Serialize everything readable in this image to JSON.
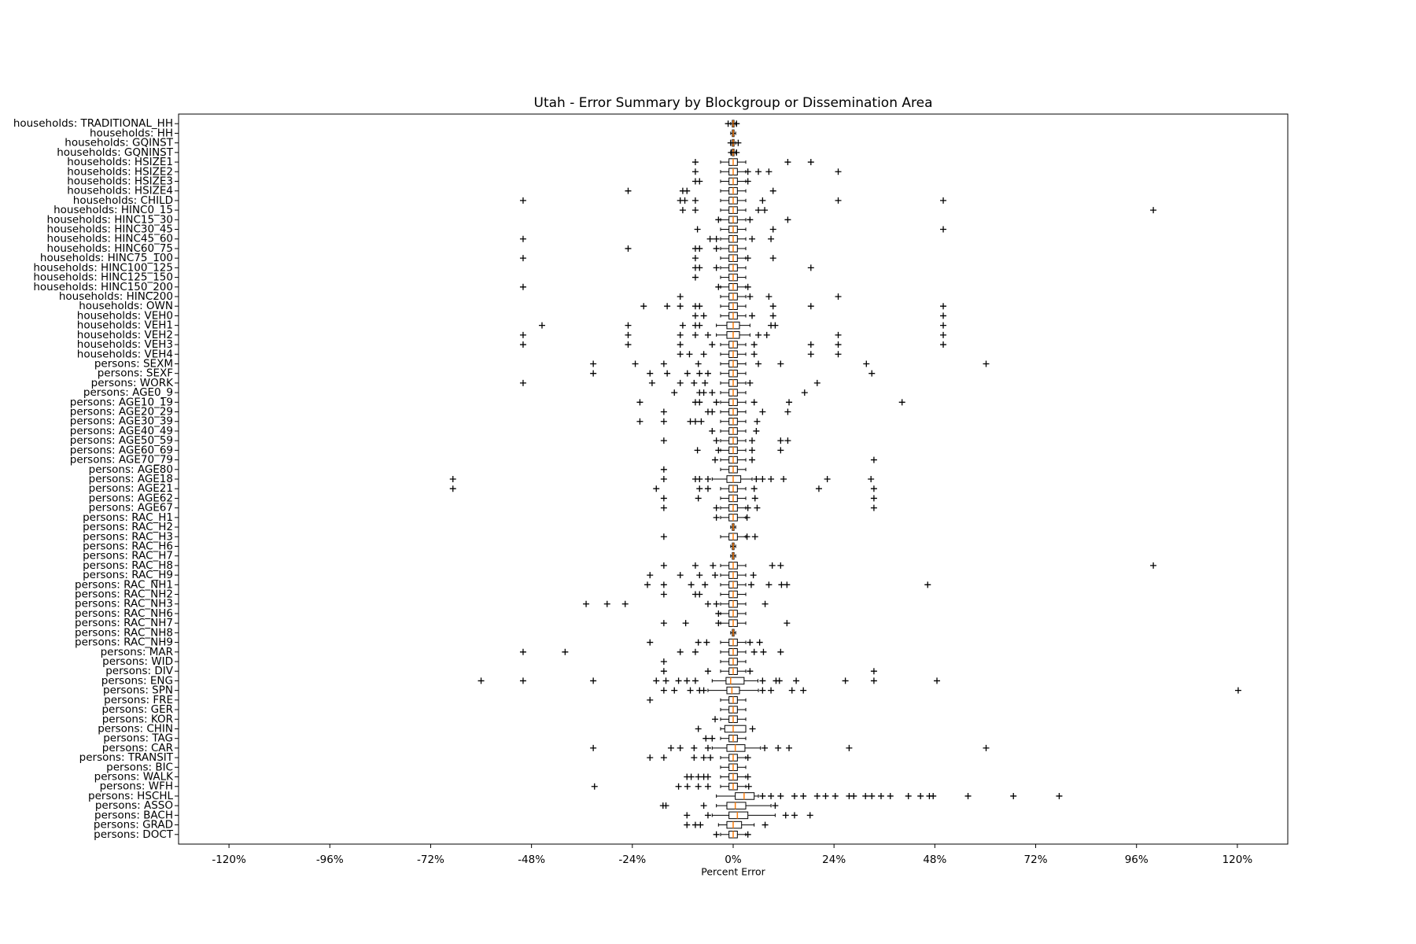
{
  "chart_data": {
    "type": "boxplot",
    "orientation": "horizontal",
    "title": "Utah - Error Summary by Blockgroup or Dissemination Area",
    "x_label": "Percent Error",
    "xlim": [
      -132,
      132
    ],
    "xticks": [
      {
        "value": -120,
        "label": "-120%"
      },
      {
        "value": -96,
        "label": "-96%"
      },
      {
        "value": -72,
        "label": "-72%"
      },
      {
        "value": -48,
        "label": "-48%"
      },
      {
        "value": -24,
        "label": "-24%"
      },
      {
        "value": 0,
        "label": "0%"
      },
      {
        "value": 24,
        "label": "24%"
      },
      {
        "value": 48,
        "label": "48%"
      },
      {
        "value": 72,
        "label": "72%"
      },
      {
        "value": 96,
        "label": "96%"
      },
      {
        "value": 120,
        "label": "120%"
      }
    ],
    "box_color": "#000000",
    "median_color": "#ff7f0e",
    "categories": [
      "households: TRADITIONAL_HH",
      "households: HH",
      "households: GQINST",
      "households: GQNINST",
      "households: HSIZE1",
      "households: HSIZE2",
      "households: HSIZE3",
      "households: HSIZE4",
      "households: CHILD",
      "households: HINC0_15",
      "households: HINC15_30",
      "households: HINC30_45",
      "households: HINC45_60",
      "households: HINC60_75",
      "households: HINC75_100",
      "households: HINC100_125",
      "households: HINC125_150",
      "households: HINC150_200",
      "households: HINC200",
      "households: OWN",
      "households: VEH0",
      "households: VEH1",
      "households: VEH2",
      "households: VEH3",
      "households: VEH4",
      "persons: SEXM",
      "persons: SEXF",
      "persons: WORK",
      "persons: AGE0_9",
      "persons: AGE10_19",
      "persons: AGE20_29",
      "persons: AGE30_39",
      "persons: AGE40_49",
      "persons: AGE50_59",
      "persons: AGE60_69",
      "persons: AGE70_79",
      "persons: AGE80",
      "persons: AGE18",
      "persons: AGE21",
      "persons: AGE62",
      "persons: AGE67",
      "persons: RAC_H1",
      "persons: RAC_H2",
      "persons: RAC_H3",
      "persons: RAC_H6",
      "persons: RAC_H7",
      "persons: RAC_H8",
      "persons: RAC_H9",
      "persons: RAC_NH1",
      "persons: RAC_NH2",
      "persons: RAC_NH3",
      "persons: RAC_NH6",
      "persons: RAC_NH7",
      "persons: RAC_NH8",
      "persons: RAC_NH9",
      "persons: MAR",
      "persons: WID",
      "persons: DIV",
      "persons: ENG",
      "persons: SPN",
      "persons: FRE",
      "persons: GER",
      "persons: KOR",
      "persons: CHIN",
      "persons: TAG",
      "persons: CAR",
      "persons: TRANSIT",
      "persons: BIC",
      "persons: WALK",
      "persons: WFH",
      "persons: HSCHL",
      "persons: ASSO",
      "persons: BACH",
      "persons: GRAD",
      "persons: DOCT"
    ],
    "q1": [
      -0.2,
      -0.2,
      -0.2,
      -0.2,
      -1,
      -1,
      -1,
      -1,
      -1,
      -1,
      -1,
      -1,
      -1,
      -1,
      -1,
      -1,
      -1,
      -1,
      -1,
      -1,
      -1,
      -1.5,
      -1.5,
      -1,
      -1,
      -1,
      -1,
      -1,
      -1,
      -1,
      -1,
      -1,
      -1,
      -1,
      -1,
      -1,
      -1,
      -1.5,
      -1,
      -1,
      -1,
      -1,
      -0.2,
      -1,
      -0.2,
      -0.2,
      -1,
      -1,
      -1,
      -1,
      -1,
      -1,
      -1,
      -0.2,
      -1,
      -1,
      -1,
      -1,
      -1.7,
      -1.5,
      -1,
      -1,
      -1,
      -2,
      -1,
      -1.5,
      -1,
      -1,
      -1,
      -1,
      0.5,
      -1.5,
      -1,
      -1.5,
      -1
    ],
    "median": [
      0,
      0,
      0,
      0,
      0,
      0,
      0,
      0,
      0,
      0,
      0,
      0,
      0,
      0,
      0,
      0,
      0,
      0,
      0,
      0,
      0,
      0,
      0,
      0,
      0,
      0,
      0,
      0,
      0,
      0,
      0,
      0,
      0,
      0,
      0,
      0,
      0,
      0,
      0,
      0,
      0,
      0,
      0,
      0,
      0,
      0,
      0,
      0,
      0,
      0,
      0,
      0,
      0,
      0,
      0,
      0,
      0,
      0,
      -0.6,
      -0.3,
      0,
      0,
      0,
      0,
      0,
      0.5,
      0,
      0,
      0,
      0,
      2.6,
      0.5,
      1,
      0,
      0
    ],
    "q3": [
      0.2,
      0.2,
      0.2,
      0.2,
      1,
      1,
      1,
      1,
      1,
      1,
      1,
      1,
      1,
      1,
      1,
      1,
      1,
      1,
      1,
      1,
      1,
      1.5,
      1.5,
      1,
      1,
      1,
      1,
      1,
      1,
      1,
      1,
      1,
      1,
      1,
      1,
      1,
      1,
      1.8,
      1,
      1,
      1,
      1,
      0.2,
      1,
      0.2,
      0.2,
      1,
      1,
      1,
      1,
      1,
      1,
      1,
      0.2,
      1,
      1,
      1,
      1,
      2.6,
      1.5,
      1,
      1,
      1,
      3,
      1,
      2.8,
      1,
      1,
      1,
      1,
      5,
      3,
      3.5,
      2,
      1
    ],
    "whislo": [
      -0.6,
      -0.6,
      -0.6,
      -0.6,
      -3,
      -3,
      -3,
      -3,
      -3,
      -3,
      -3,
      -3,
      -3,
      -3,
      -3,
      -3,
      -3,
      -3,
      -3,
      -3,
      -3,
      -4,
      -4,
      -3,
      -3,
      -3,
      -3,
      -3,
      -3,
      -3,
      -3,
      -3,
      -3,
      -3,
      -3,
      -3,
      -3,
      -5,
      -3,
      -3,
      -3,
      -3,
      -0.6,
      -3,
      -0.6,
      -0.6,
      -3,
      -3,
      -3,
      -3,
      -3,
      -3,
      -3,
      -0.6,
      -3,
      -3,
      -3,
      -3,
      -5,
      -6,
      -3,
      -3,
      -3,
      -3,
      -3,
      -5,
      -3,
      -3,
      -3,
      -3,
      -4,
      -4,
      -5,
      -3.5,
      -3
    ],
    "whishi": [
      0.6,
      0.6,
      0.6,
      0.6,
      3,
      3,
      3,
      3,
      3,
      3,
      3,
      3,
      3,
      3,
      3,
      3,
      3,
      3,
      3,
      3,
      3,
      4,
      4,
      3,
      3,
      3,
      3,
      3,
      3,
      3,
      3,
      3,
      3,
      3,
      3,
      3,
      3,
      4.5,
      3,
      3,
      3,
      3,
      0.6,
      3,
      0.6,
      0.6,
      3,
      3,
      3,
      3,
      3,
      3,
      3,
      0.6,
      3,
      3,
      3,
      3,
      5.9,
      6,
      3,
      3,
      3,
      3,
      3,
      6.5,
      3,
      3,
      3,
      3,
      6,
      9,
      10,
      5,
      3
    ],
    "fliers": [
      [
        -1.2,
        0.8
      ],
      [],
      [
        -0.6,
        1.2
      ],
      [
        -0.5,
        0.8
      ],
      [
        -9,
        13,
        18.5
      ],
      [
        -9,
        3.5,
        6,
        8.5,
        25
      ],
      [
        -9,
        -8,
        3.5
      ],
      [
        -25,
        -12,
        -11,
        9.5
      ],
      [
        -50,
        -12.6,
        -11.5,
        -9,
        7,
        25,
        50
      ],
      [
        -12,
        -9,
        6,
        7.5,
        100
      ],
      [
        -3.5,
        4,
        13
      ],
      [
        -8.5,
        9.5,
        50
      ],
      [
        -50,
        -5.5,
        -4,
        4.5,
        9
      ],
      [
        -25,
        -9,
        -8,
        -4
      ],
      [
        -50,
        -9,
        3.5,
        9.5
      ],
      [
        -9,
        -8,
        -4,
        18.5
      ],
      [
        -9
      ],
      [
        -50,
        -3.5,
        3.5
      ],
      [
        -12.6,
        4,
        8.5,
        25
      ],
      [
        -21.3,
        -15.7,
        -12.6,
        -9,
        -8,
        9.5,
        18.5,
        50
      ],
      [
        -9,
        -7,
        4.5,
        9.5,
        50
      ],
      [
        -45.5,
        -25,
        -12,
        -9,
        -8,
        9,
        10,
        50
      ],
      [
        -50,
        -25,
        -12.6,
        -9,
        -6,
        6,
        8,
        25,
        50
      ],
      [
        -50,
        -25,
        -12.6,
        -5,
        5,
        18.5,
        25,
        50
      ],
      [
        -12.6,
        -10.4,
        -7,
        5,
        18.5,
        25
      ],
      [
        -33.3,
        -23.3,
        -16.5,
        -8.3,
        6,
        11.3,
        31.7,
        60.2
      ],
      [
        -33.3,
        -19.8,
        -15.7,
        -10.9,
        -8,
        -6,
        33
      ],
      [
        -50,
        -19.3,
        -12.6,
        -9.3,
        -6.7,
        4,
        20
      ],
      [
        -14,
        -8,
        -7,
        -5,
        17
      ],
      [
        -22.2,
        -9,
        -8,
        -4,
        5,
        13.3,
        40.2
      ],
      [
        -16.5,
        -6,
        -5,
        7,
        13
      ],
      [
        -22.2,
        -16.5,
        -10.2,
        -9,
        -7.6,
        5.7
      ],
      [
        -5,
        5.5
      ],
      [
        -16.5,
        -4,
        4.5,
        11.3,
        13
      ],
      [
        -8.5,
        -3.5,
        4.5,
        11.3
      ],
      [
        -4.3,
        4.5,
        33.5
      ],
      [
        -16.5
      ],
      [
        -66.7,
        -16.5,
        -9,
        -8,
        -6,
        5.5,
        7,
        9,
        12,
        22.4,
        32.8
      ],
      [
        -66.7,
        -18.3,
        -8,
        -6,
        5,
        20.4,
        33.5
      ],
      [
        -16.5,
        -8.3,
        5.2,
        33.5
      ],
      [
        -16.5,
        -4,
        3.5,
        5.7,
        33.5
      ],
      [
        -4,
        3.3
      ],
      [],
      [
        -16.5,
        3.3,
        5.2
      ],
      [],
      [],
      [
        -16.5,
        -9,
        -4.8,
        9.3,
        11.3,
        100
      ],
      [
        -19.8,
        -12.6,
        -8,
        -4.3,
        4.8
      ],
      [
        -20.4,
        -16.5,
        -10,
        -6.7,
        4.3,
        8.5,
        11.5,
        12.8,
        46.3
      ],
      [
        -16.5,
        -9,
        -8
      ],
      [
        -35,
        -30,
        -25.7,
        -6,
        -4,
        7.6
      ],
      [
        -3.5
      ],
      [
        -16.5,
        -11.3,
        -3.5,
        12.8
      ],
      [],
      [
        -19.8,
        -8.3,
        -6.3,
        4,
        6.3
      ],
      [
        -50,
        -40,
        -12.6,
        -9,
        5,
        7.2,
        11.3
      ],
      [
        -16.5
      ],
      [
        -16.5,
        -6,
        4,
        33.5
      ],
      [
        -60,
        -50,
        -33.3,
        -18.3,
        -16,
        -13,
        -11,
        -9,
        7,
        10.2,
        11,
        15,
        26.7,
        33.5,
        48.5
      ],
      [
        -16.5,
        -14,
        -10.2,
        -8,
        -7,
        7,
        9,
        14,
        16.7,
        120.2
      ],
      [
        -19.8
      ],
      [],
      [
        -4.3
      ],
      [
        -8.3,
        4.6
      ],
      [
        -6.5,
        -5
      ],
      [
        -33.3,
        -14.8,
        -12.6,
        -9.3,
        -6,
        7.5,
        10.7,
        13.3,
        27.6,
        60.2
      ],
      [
        -19.8,
        -16.5,
        -9.3,
        -7,
        -5.4,
        3.5
      ],
      [],
      [
        -11,
        -10,
        -8.3,
        -7,
        -6,
        3.5
      ],
      [
        -33,
        -13,
        -10.9,
        -8.3,
        -6,
        3.7
      ],
      [
        7,
        9,
        11.3,
        14.6,
        16.7,
        20,
        22,
        24.3,
        27.6,
        28.7,
        31.5,
        33,
        35.2,
        37.4,
        41.7,
        44.6,
        46.7,
        47.6,
        55.9,
        66.7,
        77.6
      ],
      [
        -16.7,
        -16,
        -7,
        10
      ],
      [
        -11,
        -6,
        12.5,
        14.6,
        18.3
      ],
      [
        -11,
        -9,
        -7.8,
        7.6
      ],
      [
        -4,
        3.5
      ]
    ]
  }
}
